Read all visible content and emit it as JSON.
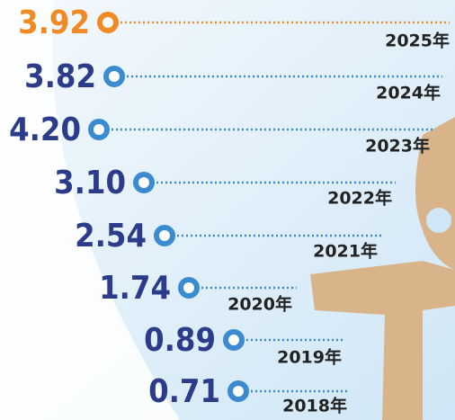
{
  "chart_data": {
    "type": "dot-list",
    "categories": [
      "2025年",
      "2024年",
      "2023年",
      "2022年",
      "2021年",
      "2020年",
      "2019年",
      "2018年"
    ],
    "values": [
      3.92,
      3.82,
      4.2,
      3.1,
      2.54,
      1.74,
      0.89,
      0.71
    ],
    "value_labels": [
      "3.92",
      "3.82",
      "4.20",
      "3.10",
      "2.54",
      "1.74",
      "0.89",
      "0.71"
    ],
    "color": "#3a8bd0",
    "highlight_color": "#f08a24",
    "text_color": "#2b3c8a"
  }
}
